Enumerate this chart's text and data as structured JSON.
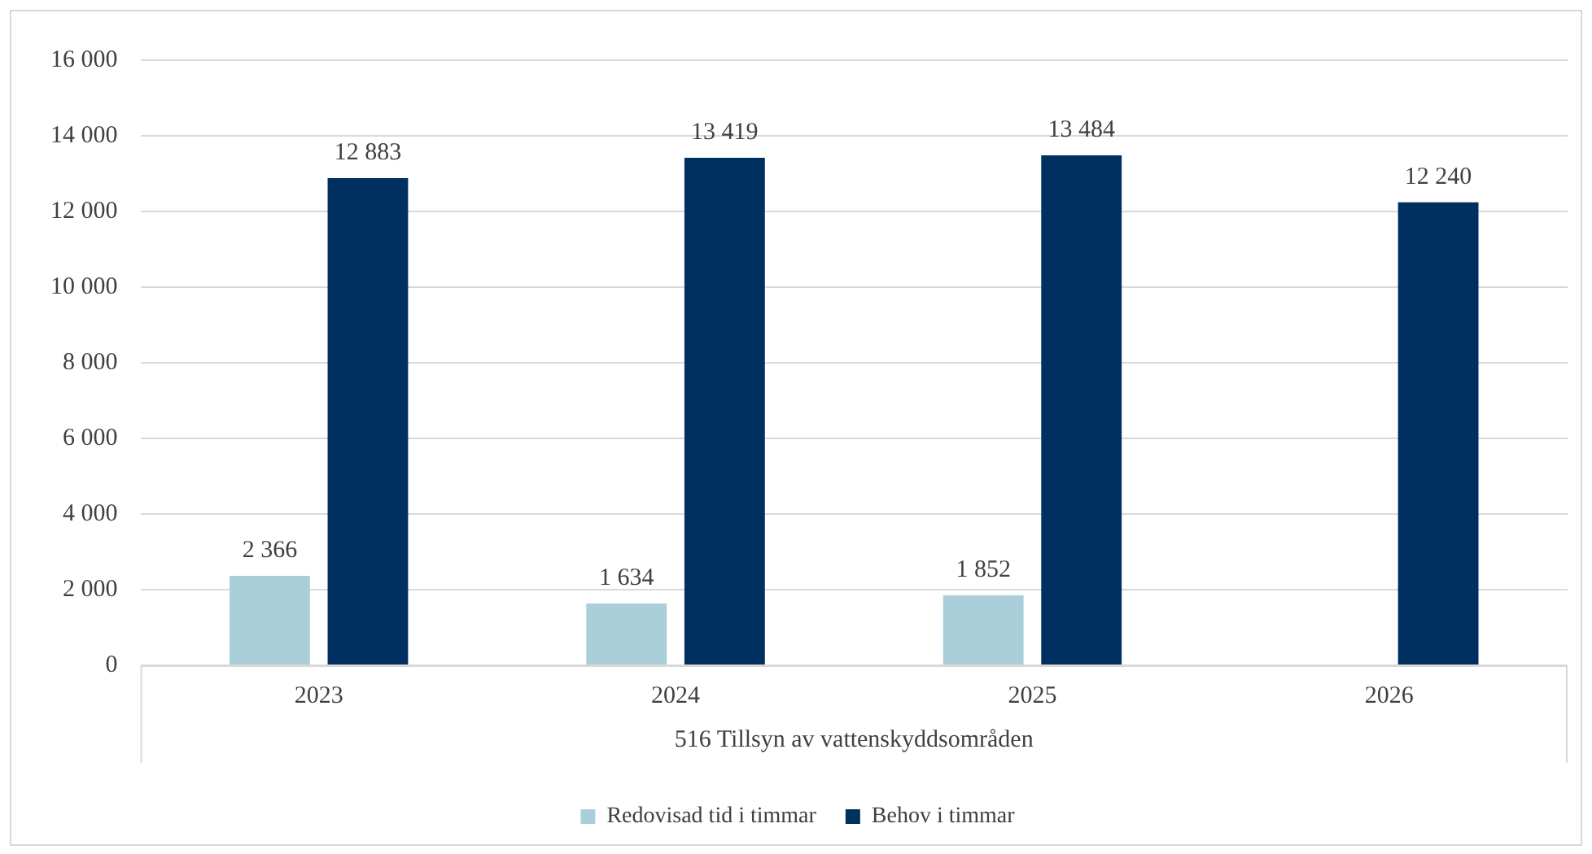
{
  "chart_data": {
    "type": "bar",
    "xlabel": "516 Tillsyn av vattenskyddsområden",
    "categories": [
      "2023",
      "2024",
      "2025",
      "2026"
    ],
    "series": [
      {
        "name": "Redovisad tid i timmar",
        "color": "#aacfdb",
        "values": [
          2366,
          1634,
          1852,
          null
        ],
        "value_labels": [
          "2 366",
          "1 634",
          "1 852",
          null
        ]
      },
      {
        "name": "Behov i timmar",
        "color": "#003060",
        "values": [
          12883,
          13419,
          13484,
          12240
        ],
        "value_labels": [
          "12 883",
          "13 419",
          "13 484",
          "12 240"
        ]
      }
    ],
    "ylim": [
      0,
      16000
    ],
    "yticks": [
      {
        "value": 0,
        "label": "0"
      },
      {
        "value": 2000,
        "label": "2 000"
      },
      {
        "value": 4000,
        "label": "4 000"
      },
      {
        "value": 6000,
        "label": "6 000"
      },
      {
        "value": 8000,
        "label": "8 000"
      },
      {
        "value": 10000,
        "label": "10 000"
      },
      {
        "value": 12000,
        "label": "12 000"
      },
      {
        "value": 14000,
        "label": "14 000"
      },
      {
        "value": 16000,
        "label": "16 000"
      }
    ],
    "grid": "y",
    "legend": "bottom"
  }
}
